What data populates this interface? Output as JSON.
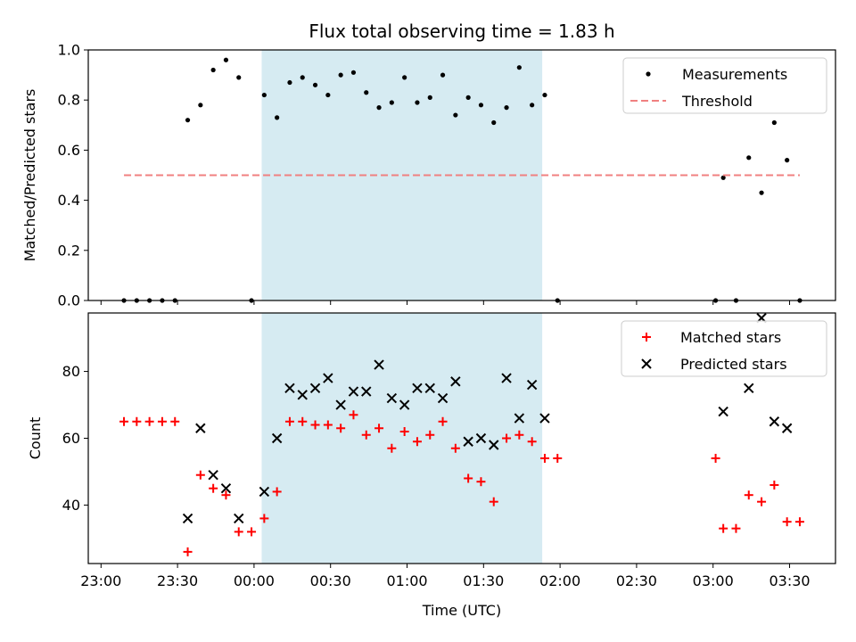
{
  "chart_data": {
    "title": "Flux total observing time = 1.83 h",
    "x_axis": {
      "label": "Time (UTC)",
      "range": [
        "22:55",
        "03:48"
      ],
      "tick_labels": [
        "23:00",
        "23:30",
        "00:00",
        "00:30",
        "01:00",
        "01:30",
        "02:00",
        "02:30",
        "03:00",
        "03:30"
      ],
      "tick_times": [
        "23:00",
        "23:30",
        "00:00",
        "00:30",
        "01:00",
        "01:30",
        "02:00",
        "02:30",
        "03:00",
        "03:30"
      ]
    },
    "highlight_span": {
      "start": "00:03",
      "end": "01:53",
      "color": "#add8e6"
    },
    "panels": [
      {
        "type": "scatter",
        "ylabel": "Matched/Predicted stars",
        "ylim": [
          0.0,
          1.0
        ],
        "y_ticks": [
          "0.0",
          "0.2",
          "0.4",
          "0.6",
          "0.8",
          "1.0"
        ],
        "y_tick_values": [
          0.0,
          0.2,
          0.4,
          0.6,
          0.8,
          1.0
        ],
        "legend_position": "top-right",
        "series": [
          {
            "name": "Measurements",
            "marker": "dot",
            "color": "#000000",
            "points": [
              [
                "23:09",
                0.0
              ],
              [
                "23:14",
                0.0
              ],
              [
                "23:19",
                0.0
              ],
              [
                "23:24",
                0.0
              ],
              [
                "23:29",
                0.0
              ],
              [
                "23:34",
                0.72
              ],
              [
                "23:39",
                0.78
              ],
              [
                "23:44",
                0.92
              ],
              [
                "23:49",
                0.96
              ],
              [
                "23:54",
                0.89
              ],
              [
                "23:59",
                0.0
              ],
              [
                "00:04",
                0.82
              ],
              [
                "00:09",
                0.73
              ],
              [
                "00:14",
                0.87
              ],
              [
                "00:19",
                0.89
              ],
              [
                "00:24",
                0.86
              ],
              [
                "00:29",
                0.82
              ],
              [
                "00:34",
                0.9
              ],
              [
                "00:39",
                0.91
              ],
              [
                "00:44",
                0.83
              ],
              [
                "00:49",
                0.77
              ],
              [
                "00:54",
                0.79
              ],
              [
                "00:59",
                0.89
              ],
              [
                "01:04",
                0.79
              ],
              [
                "01:09",
                0.81
              ],
              [
                "01:14",
                0.9
              ],
              [
                "01:19",
                0.74
              ],
              [
                "01:24",
                0.81
              ],
              [
                "01:29",
                0.78
              ],
              [
                "01:34",
                0.71
              ],
              [
                "01:39",
                0.77
              ],
              [
                "01:44",
                0.93
              ],
              [
                "01:49",
                0.78
              ],
              [
                "01:54",
                0.82
              ],
              [
                "01:59",
                0.0
              ],
              [
                "03:01",
                0.0
              ],
              [
                "03:04",
                0.49
              ],
              [
                "03:09",
                0.0
              ],
              [
                "03:14",
                0.57
              ],
              [
                "03:19",
                0.43
              ],
              [
                "03:24",
                0.71
              ],
              [
                "03:29",
                0.56
              ],
              [
                "03:34",
                0.0
              ]
            ]
          },
          {
            "name": "Threshold",
            "type": "line",
            "style": "dashed",
            "color": "#f08080",
            "points": [
              [
                "23:09",
                0.5
              ],
              [
                "03:34",
                0.5
              ]
            ]
          }
        ]
      },
      {
        "type": "scatter",
        "ylabel": "Count",
        "ylim": [
          22.5,
          97.5
        ],
        "y_ticks": [
          "40",
          "60",
          "80"
        ],
        "y_tick_values": [
          40,
          60,
          80
        ],
        "legend_position": "top-right",
        "series": [
          {
            "name": "Matched stars",
            "marker": "plus",
            "color": "#ff0000",
            "points": [
              [
                "23:09",
                65
              ],
              [
                "23:14",
                65
              ],
              [
                "23:19",
                65
              ],
              [
                "23:24",
                65
              ],
              [
                "23:29",
                65
              ],
              [
                "23:34",
                26
              ],
              [
                "23:39",
                49
              ],
              [
                "23:44",
                45
              ],
              [
                "23:49",
                43
              ],
              [
                "23:54",
                32
              ],
              [
                "23:59",
                32
              ],
              [
                "00:04",
                36
              ],
              [
                "00:09",
                44
              ],
              [
                "00:14",
                65
              ],
              [
                "00:19",
                65
              ],
              [
                "00:24",
                64
              ],
              [
                "00:29",
                64
              ],
              [
                "00:34",
                63
              ],
              [
                "00:39",
                67
              ],
              [
                "00:44",
                61
              ],
              [
                "00:49",
                63
              ],
              [
                "00:54",
                57
              ],
              [
                "00:59",
                62
              ],
              [
                "01:04",
                59
              ],
              [
                "01:09",
                61
              ],
              [
                "01:14",
                65
              ],
              [
                "01:19",
                57
              ],
              [
                "01:24",
                48
              ],
              [
                "01:29",
                47
              ],
              [
                "01:34",
                41
              ],
              [
                "01:39",
                60
              ],
              [
                "01:44",
                61
              ],
              [
                "01:49",
                59
              ],
              [
                "01:54",
                54
              ],
              [
                "01:59",
                54
              ],
              [
                "03:01",
                54
              ],
              [
                "03:04",
                33
              ],
              [
                "03:09",
                33
              ],
              [
                "03:14",
                43
              ],
              [
                "03:19",
                41
              ],
              [
                "03:24",
                46
              ],
              [
                "03:29",
                35
              ],
              [
                "03:34",
                35
              ]
            ]
          },
          {
            "name": "Predicted stars",
            "marker": "x",
            "color": "#000000",
            "points": [
              [
                "23:34",
                36
              ],
              [
                "23:39",
                63
              ],
              [
                "23:44",
                49
              ],
              [
                "23:49",
                45
              ],
              [
                "23:54",
                36
              ],
              [
                "00:04",
                44
              ],
              [
                "00:09",
                60
              ],
              [
                "00:14",
                75
              ],
              [
                "00:19",
                73
              ],
              [
                "00:24",
                75
              ],
              [
                "00:29",
                78
              ],
              [
                "00:34",
                70
              ],
              [
                "00:39",
                74
              ],
              [
                "00:44",
                74
              ],
              [
                "00:49",
                82
              ],
              [
                "00:54",
                72
              ],
              [
                "00:59",
                70
              ],
              [
                "01:04",
                75
              ],
              [
                "01:09",
                75
              ],
              [
                "01:14",
                72
              ],
              [
                "01:19",
                77
              ],
              [
                "01:24",
                59
              ],
              [
                "01:29",
                60
              ],
              [
                "01:34",
                58
              ],
              [
                "01:39",
                78
              ],
              [
                "01:44",
                66
              ],
              [
                "01:49",
                76
              ],
              [
                "01:54",
                66
              ],
              [
                "03:04",
                68
              ],
              [
                "03:14",
                75
              ],
              [
                "03:19",
                96
              ],
              [
                "03:24",
                65
              ],
              [
                "03:29",
                63
              ]
            ]
          }
        ]
      }
    ]
  }
}
